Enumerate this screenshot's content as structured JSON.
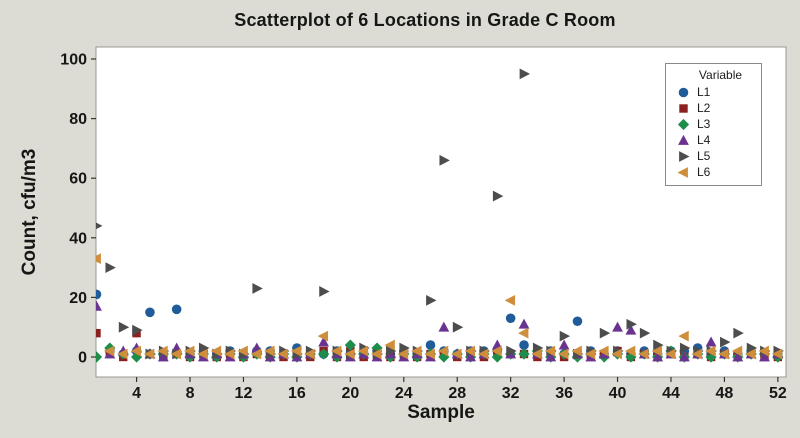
{
  "title": "Scatterplot of 6 Locations in Grade C Room",
  "x_axis": {
    "label": "Sample",
    "ticks": [
      4,
      8,
      12,
      16,
      20,
      24,
      28,
      32,
      36,
      40,
      44,
      48,
      52
    ]
  },
  "y_axis": {
    "label": "Count, cfu/m3",
    "ticks": [
      0,
      20,
      40,
      60,
      80,
      100
    ]
  },
  "legend": {
    "title": "Variable",
    "position": "top-right"
  },
  "colors": {
    "background": "#DCDCD4",
    "plot_background": "#FFFFFF",
    "plot_border": "#999990",
    "tick": "#333333",
    "text": "#161616"
  },
  "chart_data": {
    "type": "scatter",
    "title": "Scatterplot of 6 Locations in Grade C Room",
    "xlabel": "Sample",
    "ylabel": "Count, cfu/m3",
    "xlim": [
      1,
      52
    ],
    "ylim": [
      0,
      100
    ],
    "grid": false,
    "legend_position": "top-right",
    "x": [
      1,
      2,
      3,
      4,
      5,
      6,
      7,
      8,
      9,
      10,
      11,
      12,
      13,
      14,
      15,
      16,
      17,
      18,
      19,
      20,
      21,
      22,
      23,
      24,
      25,
      26,
      27,
      28,
      29,
      30,
      31,
      32,
      33,
      34,
      35,
      36,
      37,
      38,
      39,
      40,
      41,
      42,
      43,
      44,
      45,
      46,
      47,
      48,
      49,
      50,
      51,
      52
    ],
    "series": [
      {
        "name": "L1",
        "marker": "circle",
        "color": "#1F5C99",
        "values": [
          21,
          2,
          1,
          2,
          15,
          1,
          16,
          1,
          2,
          1,
          2,
          1,
          2,
          2,
          1,
          3,
          1,
          1,
          2,
          1,
          1,
          2,
          1,
          2,
          1,
          4,
          2,
          1,
          2,
          2,
          2,
          13,
          4,
          1,
          2,
          1,
          12,
          2,
          1,
          2,
          1,
          2,
          1,
          2,
          2,
          3,
          1,
          2,
          1,
          2,
          1,
          1
        ]
      },
      {
        "name": "L2",
        "marker": "square",
        "color": "#8C1F1F",
        "values": [
          8,
          1,
          0,
          8,
          1,
          0,
          1,
          0,
          1,
          0,
          1,
          0,
          1,
          1,
          0,
          1,
          0,
          2,
          0,
          2,
          0,
          1,
          0,
          1,
          0,
          1,
          1,
          0,
          1,
          0,
          2,
          1,
          1,
          0,
          1,
          0,
          1,
          0,
          1,
          2,
          0,
          1,
          0,
          1,
          0,
          1,
          0,
          1,
          0,
          1,
          0,
          0
        ]
      },
      {
        "name": "L3",
        "marker": "diamond",
        "color": "#1E8C4A",
        "values": [
          0,
          3,
          1,
          0,
          1,
          1,
          1,
          0,
          1,
          0,
          1,
          0,
          1,
          0,
          1,
          0,
          1,
          1,
          0,
          4,
          1,
          3,
          0,
          1,
          0,
          1,
          0,
          1,
          0,
          1,
          0,
          1,
          1,
          2,
          0,
          1,
          0,
          1,
          0,
          1,
          0,
          1,
          0,
          2,
          0,
          1,
          0,
          1,
          0,
          1,
          1,
          0
        ]
      },
      {
        "name": "L4",
        "marker": "triangle-up",
        "color": "#6A3390",
        "values": [
          17,
          1,
          2,
          3,
          1,
          0,
          3,
          1,
          0,
          1,
          0,
          1,
          3,
          0,
          1,
          0,
          1,
          5,
          1,
          0,
          1,
          0,
          1,
          0,
          1,
          0,
          10,
          1,
          0,
          1,
          4,
          1,
          11,
          1,
          0,
          4,
          1,
          0,
          1,
          10,
          9,
          1,
          0,
          1,
          0,
          1,
          5,
          1,
          0,
          1,
          0,
          1
        ]
      },
      {
        "name": "L5",
        "marker": "triangle-right",
        "color": "#4D4D4D",
        "values": [
          44,
          30,
          10,
          9,
          1,
          2,
          1,
          2,
          3,
          1,
          2,
          1,
          23,
          1,
          2,
          1,
          2,
          22,
          2,
          1,
          3,
          1,
          2,
          3,
          2,
          19,
          66,
          10,
          2,
          2,
          54,
          2,
          95,
          3,
          2,
          7,
          1,
          2,
          8,
          2,
          11,
          8,
          4,
          2,
          3,
          2,
          2,
          5,
          8,
          3,
          2,
          2
        ]
      },
      {
        "name": "L6",
        "marker": "triangle-left",
        "color": "#CE8E3C",
        "values": [
          33,
          2,
          1,
          2,
          1,
          2,
          1,
          2,
          1,
          2,
          1,
          2,
          1,
          2,
          1,
          2,
          1,
          7,
          2,
          1,
          2,
          1,
          4,
          1,
          2,
          1,
          2,
          1,
          2,
          1,
          2,
          19,
          8,
          1,
          2,
          1,
          2,
          1,
          2,
          1,
          2,
          1,
          2,
          1,
          7,
          1,
          2,
          1,
          2,
          1,
          2,
          1
        ]
      }
    ]
  }
}
